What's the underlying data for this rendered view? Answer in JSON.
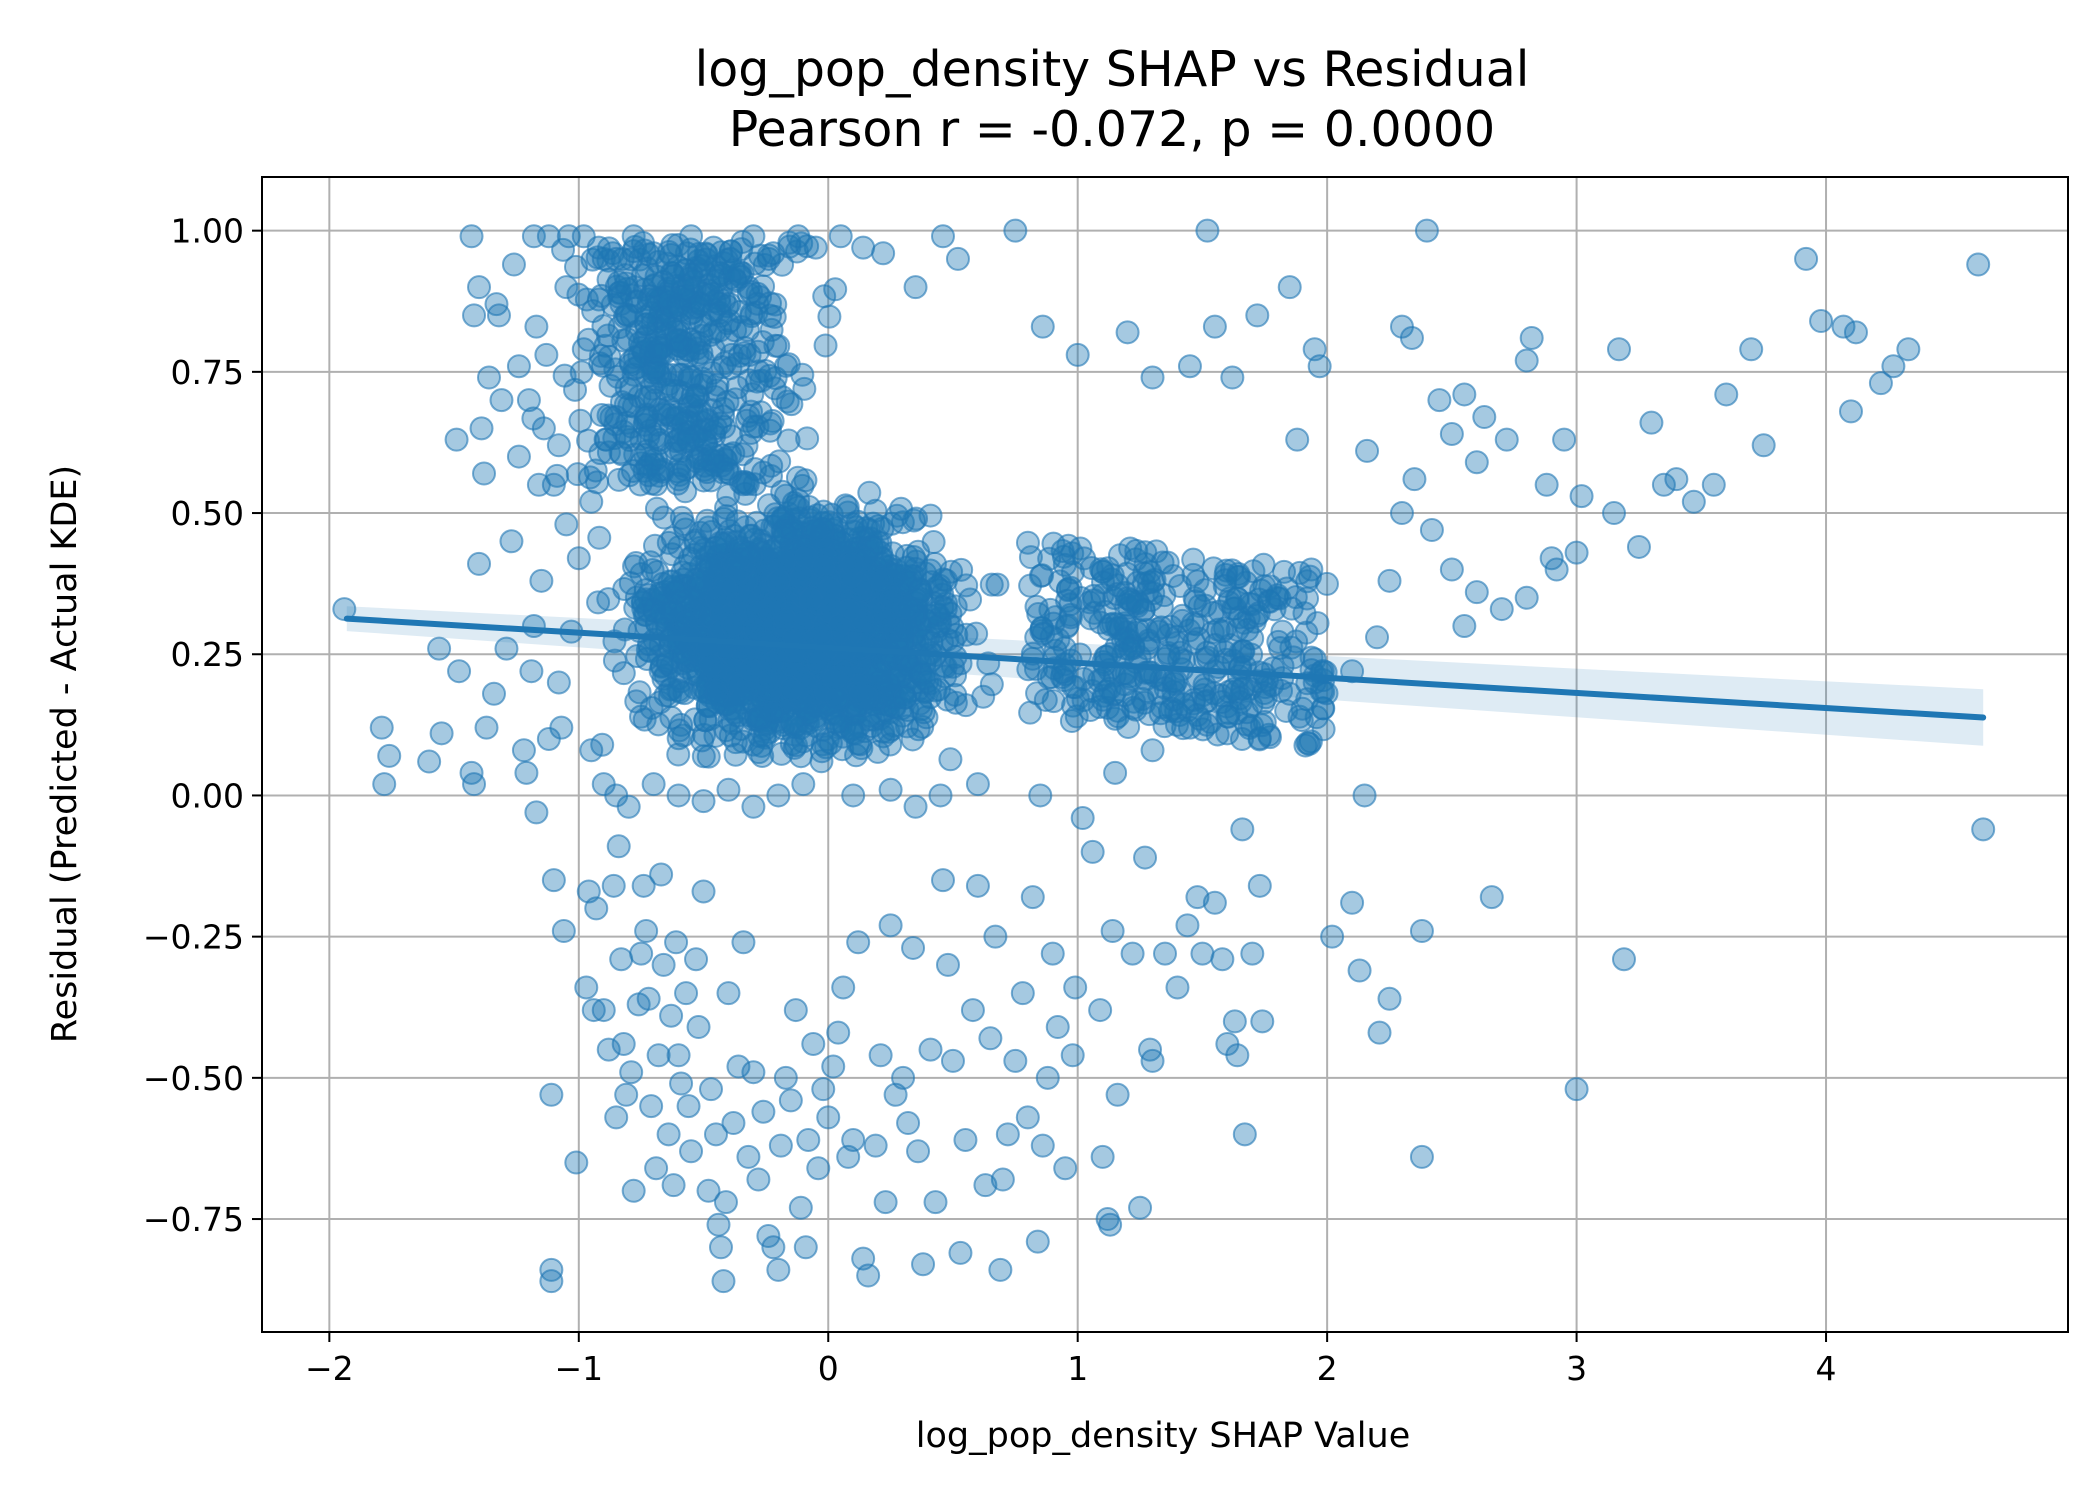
{
  "chart_data": {
    "type": "scatter",
    "title": "log_pop_density SHAP vs Residual",
    "subtitle": "Pearson r = -0.072, p = 0.0000",
    "xlabel": "log_pop_density SHAP Value",
    "ylabel": "Residual (Predicted - Actual KDE)",
    "xlim": [
      -2.27,
      4.97
    ],
    "ylim": [
      -0.95,
      1.095
    ],
    "xticks": [
      -2,
      -1,
      0,
      1,
      2,
      3,
      4
    ],
    "xtick_labels": [
      "−2",
      "−1",
      "0",
      "1",
      "2",
      "3",
      "4"
    ],
    "yticks": [
      -0.75,
      -0.5,
      -0.25,
      0.0,
      0.25,
      0.5,
      0.75,
      1.0
    ],
    "ytick_labels": [
      "−0.75",
      "−0.50",
      "−0.25",
      "0.00",
      "0.25",
      "0.50",
      "0.75",
      "1.00"
    ],
    "grid": true,
    "legend": "none",
    "marker_color": "#1f77b4",
    "marker_alpha": 0.4,
    "regression": {
      "x_range": [
        -1.93,
        4.63
      ],
      "y_at_start": 0.313,
      "y_at_end": 0.138,
      "ci_halfwidth_at_start": 0.022,
      "ci_halfwidth_at_end": 0.05,
      "color": "#1f77b4"
    },
    "points": [
      [
        -1.94,
        0.33
      ],
      [
        -1.79,
        0.12
      ],
      [
        -1.78,
        0.02
      ],
      [
        -1.76,
        0.07
      ],
      [
        -1.6,
        0.06
      ],
      [
        -1.56,
        0.26
      ],
      [
        -1.55,
        0.11
      ],
      [
        -1.49,
        0.63
      ],
      [
        -1.48,
        0.22
      ],
      [
        -1.43,
        0.99
      ],
      [
        -1.43,
        0.04
      ],
      [
        -1.42,
        0.02
      ],
      [
        -1.42,
        0.85
      ],
      [
        -1.4,
        0.9
      ],
      [
        -1.39,
        0.65
      ],
      [
        -1.4,
        0.41
      ],
      [
        -1.38,
        0.57
      ],
      [
        -1.37,
        0.12
      ],
      [
        -1.36,
        0.74
      ],
      [
        -1.34,
        0.18
      ],
      [
        -1.33,
        0.87
      ],
      [
        -1.32,
        0.85
      ],
      [
        -1.31,
        0.7
      ],
      [
        -1.29,
        0.26
      ],
      [
        -1.27,
        0.45
      ],
      [
        -1.26,
        0.94
      ],
      [
        -1.24,
        0.6
      ],
      [
        -1.24,
        0.76
      ],
      [
        -1.22,
        0.08
      ],
      [
        -1.21,
        0.04
      ],
      [
        -1.19,
        0.22
      ],
      [
        -1.18,
        0.99
      ],
      [
        -1.17,
        0.83
      ],
      [
        -1.17,
        -0.03
      ],
      [
        -1.16,
        0.55
      ],
      [
        -1.15,
        0.38
      ],
      [
        -1.13,
        0.78
      ],
      [
        -1.12,
        0.99
      ],
      [
        -1.11,
        -0.84
      ],
      [
        -1.11,
        -0.86
      ],
      [
        -1.11,
        -0.53
      ],
      [
        -1.1,
        -0.15
      ],
      [
        -1.08,
        0.62
      ],
      [
        -1.07,
        0.12
      ],
      [
        -1.06,
        -0.24
      ],
      [
        -1.05,
        0.9
      ],
      [
        -1.04,
        0.99
      ],
      [
        -1.03,
        0.29
      ],
      [
        -1.01,
        -0.65
      ],
      [
        -0.98,
        0.79
      ],
      [
        -0.97,
        -0.34
      ],
      [
        -0.96,
        -0.17
      ],
      [
        -0.95,
        0.52
      ],
      [
        -0.94,
        -0.38
      ],
      [
        -0.93,
        -0.2
      ],
      [
        -0.9,
        -0.38
      ],
      [
        -0.9,
        0.95
      ],
      [
        -0.88,
        -0.45
      ],
      [
        -0.86,
        -0.16
      ],
      [
        -0.85,
        -0.57
      ],
      [
        -0.84,
        -0.09
      ],
      [
        -0.83,
        -0.29
      ],
      [
        -0.82,
        -0.44
      ],
      [
        -0.81,
        -0.53
      ],
      [
        -0.79,
        -0.49
      ],
      [
        -0.78,
        -0.7
      ],
      [
        -0.76,
        -0.37
      ],
      [
        -0.75,
        -0.28
      ],
      [
        -0.74,
        -0.16
      ],
      [
        -0.73,
        -0.24
      ],
      [
        -0.72,
        -0.36
      ],
      [
        -0.71,
        -0.55
      ],
      [
        -0.69,
        -0.66
      ],
      [
        -0.68,
        -0.46
      ],
      [
        -0.67,
        -0.14
      ],
      [
        -0.66,
        -0.3
      ],
      [
        -0.64,
        -0.6
      ],
      [
        -0.63,
        -0.39
      ],
      [
        -0.62,
        -0.69
      ],
      [
        -0.61,
        -0.26
      ],
      [
        -0.6,
        -0.46
      ],
      [
        -0.59,
        -0.51
      ],
      [
        -0.57,
        -0.35
      ],
      [
        -0.56,
        -0.55
      ],
      [
        -0.55,
        -0.63
      ],
      [
        -0.53,
        -0.29
      ],
      [
        -0.52,
        -0.41
      ],
      [
        -0.5,
        -0.17
      ],
      [
        -0.48,
        -0.7
      ],
      [
        -0.47,
        -0.52
      ],
      [
        -0.45,
        -0.6
      ],
      [
        -0.44,
        -0.76
      ],
      [
        -0.43,
        -0.8
      ],
      [
        -0.42,
        -0.86
      ],
      [
        -0.41,
        -0.72
      ],
      [
        -0.4,
        -0.35
      ],
      [
        -0.38,
        -0.58
      ],
      [
        -0.36,
        -0.48
      ],
      [
        -0.34,
        -0.26
      ],
      [
        -0.32,
        -0.64
      ],
      [
        -0.3,
        -0.49
      ],
      [
        -0.28,
        -0.68
      ],
      [
        -0.26,
        -0.56
      ],
      [
        -0.24,
        -0.78
      ],
      [
        -0.22,
        -0.8
      ],
      [
        -0.2,
        -0.84
      ],
      [
        -0.19,
        -0.62
      ],
      [
        -0.17,
        -0.5
      ],
      [
        -0.15,
        -0.54
      ],
      [
        -0.13,
        -0.38
      ],
      [
        -0.11,
        -0.73
      ],
      [
        -0.09,
        -0.8
      ],
      [
        -0.08,
        -0.61
      ],
      [
        -0.06,
        -0.44
      ],
      [
        -0.04,
        -0.66
      ],
      [
        -0.02,
        -0.52
      ],
      [
        0.0,
        -0.57
      ],
      [
        0.02,
        -0.48
      ],
      [
        0.04,
        -0.42
      ],
      [
        0.06,
        -0.34
      ],
      [
        0.08,
        -0.64
      ],
      [
        0.1,
        -0.61
      ],
      [
        0.12,
        -0.26
      ],
      [
        0.14,
        -0.82
      ],
      [
        0.16,
        -0.85
      ],
      [
        0.19,
        -0.62
      ],
      [
        0.21,
        -0.46
      ],
      [
        0.23,
        -0.72
      ],
      [
        0.25,
        -0.23
      ],
      [
        0.27,
        -0.53
      ],
      [
        0.3,
        -0.5
      ],
      [
        0.32,
        -0.58
      ],
      [
        0.34,
        -0.27
      ],
      [
        0.36,
        -0.63
      ],
      [
        0.38,
        -0.83
      ],
      [
        0.41,
        -0.45
      ],
      [
        0.43,
        -0.72
      ],
      [
        0.46,
        -0.15
      ],
      [
        0.48,
        -0.3
      ],
      [
        0.5,
        -0.47
      ],
      [
        0.53,
        -0.81
      ],
      [
        0.55,
        -0.61
      ],
      [
        0.58,
        -0.38
      ],
      [
        0.6,
        -0.16
      ],
      [
        0.63,
        -0.69
      ],
      [
        0.65,
        -0.43
      ],
      [
        0.67,
        -0.25
      ],
      [
        0.69,
        -0.84
      ],
      [
        0.7,
        -0.68
      ],
      [
        0.72,
        -0.6
      ],
      [
        0.75,
        -0.47
      ],
      [
        0.78,
        -0.35
      ],
      [
        0.8,
        -0.57
      ],
      [
        0.82,
        -0.18
      ],
      [
        0.84,
        -0.79
      ],
      [
        0.86,
        -0.62
      ],
      [
        0.88,
        -0.5
      ],
      [
        0.9,
        -0.28
      ],
      [
        0.92,
        -0.41
      ],
      [
        0.95,
        -0.66
      ],
      [
        0.98,
        -0.46
      ],
      [
        0.99,
        -0.34
      ],
      [
        1.02,
        -0.04
      ],
      [
        1.06,
        -0.1
      ],
      [
        1.09,
        -0.38
      ],
      [
        1.1,
        -0.64
      ],
      [
        1.12,
        -0.75
      ],
      [
        1.13,
        -0.76
      ],
      [
        1.14,
        -0.24
      ],
      [
        1.16,
        -0.53
      ],
      [
        1.22,
        -0.28
      ],
      [
        1.25,
        -0.73
      ],
      [
        1.27,
        -0.11
      ],
      [
        1.29,
        -0.45
      ],
      [
        1.3,
        -0.47
      ],
      [
        1.35,
        -0.28
      ],
      [
        1.4,
        -0.34
      ],
      [
        1.44,
        -0.23
      ],
      [
        1.48,
        -0.18
      ],
      [
        1.5,
        -0.28
      ],
      [
        1.55,
        -0.19
      ],
      [
        1.58,
        -0.29
      ],
      [
        1.6,
        -0.44
      ],
      [
        1.63,
        -0.4
      ],
      [
        1.64,
        -0.46
      ],
      [
        1.66,
        -0.06
      ],
      [
        1.67,
        -0.6
      ],
      [
        1.7,
        -0.28
      ],
      [
        1.73,
        -0.16
      ],
      [
        1.74,
        -0.4
      ],
      [
        1.88,
        0.63
      ],
      [
        1.95,
        0.79
      ],
      [
        1.97,
        0.76
      ],
      [
        2.02,
        -0.25
      ],
      [
        2.1,
        -0.19
      ],
      [
        2.13,
        -0.31
      ],
      [
        2.15,
        0.0
      ],
      [
        2.16,
        0.61
      ],
      [
        2.21,
        -0.42
      ],
      [
        2.25,
        -0.36
      ],
      [
        2.3,
        0.83
      ],
      [
        2.34,
        0.81
      ],
      [
        2.38,
        -0.24
      ],
      [
        2.38,
        -0.64
      ],
      [
        2.4,
        1.0
      ],
      [
        2.45,
        0.7
      ],
      [
        2.5,
        0.64
      ],
      [
        2.55,
        0.71
      ],
      [
        2.6,
        0.59
      ],
      [
        2.63,
        0.67
      ],
      [
        2.66,
        -0.18
      ],
      [
        2.72,
        0.63
      ],
      [
        2.8,
        0.77
      ],
      [
        2.82,
        0.81
      ],
      [
        2.88,
        0.55
      ],
      [
        2.9,
        0.42
      ],
      [
        2.95,
        0.63
      ],
      [
        3.0,
        -0.52
      ],
      [
        3.0,
        0.43
      ],
      [
        3.02,
        0.53
      ],
      [
        3.15,
        0.5
      ],
      [
        3.17,
        0.79
      ],
      [
        3.19,
        -0.29
      ],
      [
        3.25,
        0.44
      ],
      [
        3.3,
        0.66
      ],
      [
        3.35,
        0.55
      ],
      [
        3.4,
        0.56
      ],
      [
        3.47,
        0.52
      ],
      [
        3.55,
        0.55
      ],
      [
        3.6,
        0.71
      ],
      [
        3.75,
        0.62
      ],
      [
        3.7,
        0.79
      ],
      [
        3.92,
        0.95
      ],
      [
        3.98,
        0.84
      ],
      [
        4.07,
        0.83
      ],
      [
        4.1,
        0.68
      ],
      [
        4.12,
        0.82
      ],
      [
        4.22,
        0.73
      ],
      [
        4.27,
        0.76
      ],
      [
        4.33,
        0.79
      ],
      [
        4.61,
        0.94
      ],
      [
        4.63,
        -0.06
      ],
      [
        -0.98,
        0.99
      ],
      [
        -0.92,
        0.97
      ],
      [
        -0.85,
        0.95
      ],
      [
        -0.78,
        0.99
      ],
      [
        -0.7,
        0.96
      ],
      [
        -0.62,
        0.92
      ],
      [
        -0.55,
        0.99
      ],
      [
        -0.46,
        0.97
      ],
      [
        -0.38,
        0.93
      ],
      [
        -0.3,
        0.99
      ],
      [
        -0.22,
        0.96
      ],
      [
        -0.12,
        0.99
      ],
      [
        -0.05,
        0.97
      ],
      [
        0.05,
        0.99
      ],
      [
        0.14,
        0.97
      ],
      [
        0.22,
        0.96
      ],
      [
        0.35,
        0.9
      ],
      [
        0.46,
        0.99
      ],
      [
        0.52,
        0.95
      ],
      [
        0.75,
        1.0
      ],
      [
        0.86,
        0.83
      ],
      [
        1.0,
        0.78
      ],
      [
        1.2,
        0.82
      ],
      [
        1.52,
        1.0
      ],
      [
        1.55,
        0.83
      ],
      [
        1.72,
        0.85
      ],
      [
        1.85,
        0.9
      ],
      [
        1.3,
        0.74
      ],
      [
        1.45,
        0.76
      ],
      [
        1.62,
        0.74
      ],
      [
        -1.2,
        0.7
      ],
      [
        -1.14,
        0.65
      ],
      [
        -1.1,
        0.55
      ],
      [
        -1.05,
        0.48
      ],
      [
        -1.0,
        0.42
      ],
      [
        -1.18,
        0.3
      ],
      [
        -1.12,
        0.1
      ],
      [
        -1.08,
        0.2
      ],
      [
        -0.95,
        0.08
      ],
      [
        -0.9,
        0.02
      ],
      [
        -0.85,
        0.0
      ],
      [
        -0.8,
        -0.02
      ],
      [
        -0.7,
        0.02
      ],
      [
        -0.6,
        0.0
      ],
      [
        -0.5,
        -0.01
      ],
      [
        -0.4,
        0.01
      ],
      [
        -0.3,
        -0.02
      ],
      [
        -0.2,
        0.0
      ],
      [
        -0.1,
        0.02
      ],
      [
        0.1,
        0.0
      ],
      [
        0.25,
        0.01
      ],
      [
        0.35,
        -0.02
      ],
      [
        0.45,
        0.0
      ],
      [
        0.6,
        0.02
      ],
      [
        0.85,
        0.0
      ],
      [
        1.15,
        0.04
      ],
      [
        1.3,
        0.08
      ],
      [
        1.45,
        0.12
      ],
      [
        1.6,
        0.14
      ],
      [
        1.75,
        0.13
      ],
      [
        1.85,
        0.18
      ],
      [
        1.95,
        0.2
      ],
      [
        2.1,
        0.22
      ],
      [
        2.2,
        0.28
      ],
      [
        2.25,
        0.38
      ],
      [
        2.3,
        0.5
      ],
      [
        2.35,
        0.56
      ],
      [
        2.42,
        0.47
      ],
      [
        2.5,
        0.4
      ],
      [
        2.55,
        0.3
      ],
      [
        2.6,
        0.36
      ],
      [
        2.7,
        0.33
      ],
      [
        2.8,
        0.35
      ],
      [
        2.92,
        0.4
      ]
    ],
    "dense_region": {
      "x_range": [
        -1.0,
        0.9
      ],
      "y_range": [
        0.1,
        0.6
      ],
      "note": "dense overplotted cluster rendered as near-solid fill"
    }
  }
}
